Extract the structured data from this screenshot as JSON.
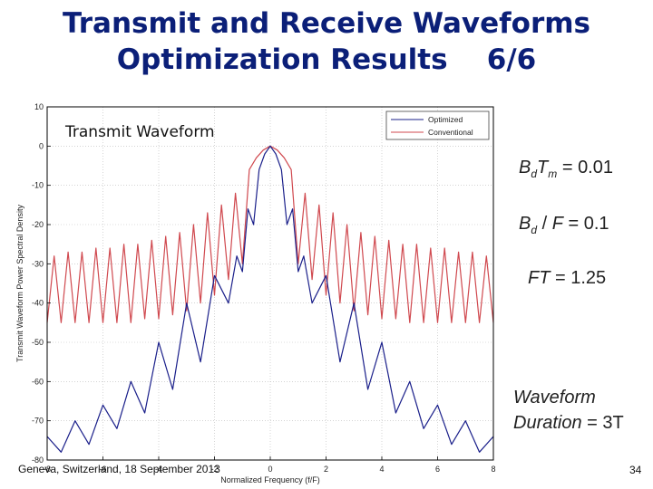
{
  "slide": {
    "title_line1": "Transmit and Receive Waveforms",
    "title_line2": "Optimization Results    6/6",
    "footer": "Geneva, Switzerland, 18 September 2013",
    "page_number": "34"
  },
  "equations": {
    "eq1": {
      "lhs_main1": "B",
      "lhs_sub1": "d",
      "lhs_main2": "T",
      "lhs_sub2": "m",
      "eq": "=",
      "rhs": "0.01"
    },
    "eq2": {
      "lhs_main1": "B",
      "lhs_sub1": "d",
      "op": "/",
      "lhs_main2": "F",
      "eq": "=",
      "rhs": "0.1"
    },
    "eq3": {
      "lhs": "FT",
      "eq": "=",
      "rhs": "1.25"
    },
    "duration": {
      "line1": "Waveform",
      "line2_label": "Duration",
      "eq": "=",
      "rhs": "3T"
    }
  },
  "colors": {
    "optimized": "#1a1f8a",
    "conventional": "#d0494f",
    "axis": "#000000",
    "grid": "#bbbbbb",
    "title": "#0b1f78"
  },
  "chart_data": {
    "type": "line",
    "title": "Transmit Waveform",
    "xlabel": "Normalized Frequency (f/F)",
    "ylabel": "Transmit Waveform Power Spectral Density",
    "xlim": [
      -8,
      8
    ],
    "ylim": [
      -80,
      10
    ],
    "xticks": [
      -8,
      -6,
      -4,
      -2,
      0,
      2,
      4,
      6,
      8
    ],
    "xtick_labels": [
      "-8",
      "-6",
      "-4",
      "-2",
      "0",
      "2",
      "4",
      "6",
      "8"
    ],
    "yticks": [
      10,
      0,
      -10,
      -20,
      -30,
      -40,
      -50,
      -60,
      -70,
      -80
    ],
    "ytick_labels": [
      "10",
      "0",
      "-10",
      "-20",
      "-30",
      "-40",
      "-50",
      "-60",
      "-70",
      "-80"
    ],
    "grid": true,
    "legend_position": "top-right",
    "series": [
      {
        "name": "Optimized",
        "x": [
          -8,
          -7.5,
          -7,
          -6.5,
          -6,
          -5.5,
          -5,
          -4.5,
          -4,
          -3.5,
          -3,
          -2.5,
          -2,
          -1.5,
          -1.2,
          -1,
          -0.8,
          -0.6,
          -0.4,
          -0.2,
          0,
          0.2,
          0.4,
          0.6,
          0.8,
          1,
          1.2,
          1.5,
          2,
          2.5,
          3,
          3.5,
          4,
          4.5,
          5,
          5.5,
          6,
          6.5,
          7,
          7.5,
          8
        ],
        "y": [
          -74,
          -78,
          -70,
          -76,
          -66,
          -72,
          -60,
          -68,
          -50,
          -62,
          -40,
          -55,
          -33,
          -40,
          -28,
          -32,
          -16,
          -20,
          -6,
          -2,
          0,
          -2,
          -6,
          -20,
          -16,
          -32,
          -28,
          -40,
          -33,
          -55,
          -40,
          -62,
          -50,
          -68,
          -60,
          -72,
          -66,
          -76,
          -70,
          -78,
          -74
        ]
      },
      {
        "name": "Conventional",
        "x": [
          -8,
          -7.75,
          -7.5,
          -7.25,
          -7,
          -6.75,
          -6.5,
          -6.25,
          -6,
          -5.75,
          -5.5,
          -5.25,
          -5,
          -4.75,
          -4.5,
          -4.25,
          -4,
          -3.75,
          -3.5,
          -3.25,
          -3,
          -2.75,
          -2.5,
          -2.25,
          -2,
          -1.75,
          -1.5,
          -1.25,
          -1,
          -0.75,
          -0.5,
          -0.25,
          0,
          0.25,
          0.5,
          0.75,
          1,
          1.25,
          1.5,
          1.75,
          2,
          2.25,
          2.5,
          2.75,
          3,
          3.25,
          3.5,
          3.75,
          4,
          4.25,
          4.5,
          4.75,
          5,
          5.25,
          5.5,
          5.75,
          6,
          6.25,
          6.5,
          6.75,
          7,
          7.25,
          7.5,
          7.75,
          8
        ],
        "y": [
          -45,
          -28,
          -45,
          -27,
          -45,
          -27,
          -45,
          -26,
          -45,
          -26,
          -45,
          -25,
          -45,
          -25,
          -44,
          -24,
          -44,
          -23,
          -43,
          -22,
          -42,
          -20,
          -40,
          -17,
          -38,
          -15,
          -34,
          -12,
          -30,
          -6,
          -3,
          -1,
          0,
          -1,
          -3,
          -6,
          -30,
          -12,
          -34,
          -15,
          -38,
          -17,
          -40,
          -20,
          -42,
          -22,
          -43,
          -23,
          -44,
          -24,
          -44,
          -25,
          -45,
          -25,
          -45,
          -26,
          -45,
          -26,
          -45,
          -27,
          -45,
          -27,
          -45,
          -28,
          -45
        ]
      }
    ]
  }
}
